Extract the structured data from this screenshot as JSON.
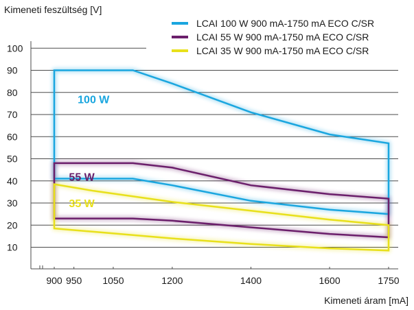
{
  "chart_data": {
    "type": "area",
    "title": "",
    "ylabel": "Kimeneti feszültség [V]",
    "xlabel": "Kimeneti áram [mA]",
    "ylim": [
      0,
      100
    ],
    "xlim": [
      820,
      1760
    ],
    "y_ticks": [
      10,
      20,
      30,
      40,
      50,
      60,
      70,
      80,
      90,
      100
    ],
    "x_ticks": [
      900,
      950,
      1050,
      1200,
      1400,
      1600,
      1750
    ],
    "grid": true,
    "legend_position": "top-right",
    "series": [
      {
        "name": "LCAI 100 W 900 mA-1750 mA ECO C/SR",
        "label": "100 W",
        "color": "#1aa6df",
        "upper": [
          [
            900,
            90
          ],
          [
            1100,
            90
          ],
          [
            1200,
            84
          ],
          [
            1400,
            71
          ],
          [
            1600,
            61
          ],
          [
            1750,
            57
          ]
        ],
        "lower": [
          [
            900,
            41
          ],
          [
            1100,
            41
          ],
          [
            1200,
            38
          ],
          [
            1400,
            31
          ],
          [
            1600,
            27
          ],
          [
            1750,
            25
          ]
        ]
      },
      {
        "name": "LCAI 55 W 900 mA-1750 mA ECO C/SR",
        "label": "55 W",
        "color": "#6b1f6b",
        "upper": [
          [
            900,
            48
          ],
          [
            1100,
            48
          ],
          [
            1200,
            46
          ],
          [
            1400,
            38
          ],
          [
            1600,
            34
          ],
          [
            1750,
            32
          ]
        ],
        "lower": [
          [
            900,
            23
          ],
          [
            1100,
            23
          ],
          [
            1200,
            22
          ],
          [
            1400,
            19
          ],
          [
            1600,
            16
          ],
          [
            1750,
            14.5
          ]
        ]
      },
      {
        "name": "LCAI 35 W 900 mA-1750 mA ECO C/SR",
        "label": "35 W",
        "color": "#e8e01b",
        "upper": [
          [
            900,
            38.5
          ],
          [
            1000,
            35.5
          ],
          [
            1200,
            30.5
          ],
          [
            1400,
            26.5
          ],
          [
            1600,
            22.5
          ],
          [
            1750,
            20
          ]
        ],
        "lower": [
          [
            900,
            18.5
          ],
          [
            1000,
            17
          ],
          [
            1200,
            14
          ],
          [
            1400,
            11.5
          ],
          [
            1600,
            9.5
          ],
          [
            1750,
            8.5
          ]
        ]
      }
    ]
  }
}
